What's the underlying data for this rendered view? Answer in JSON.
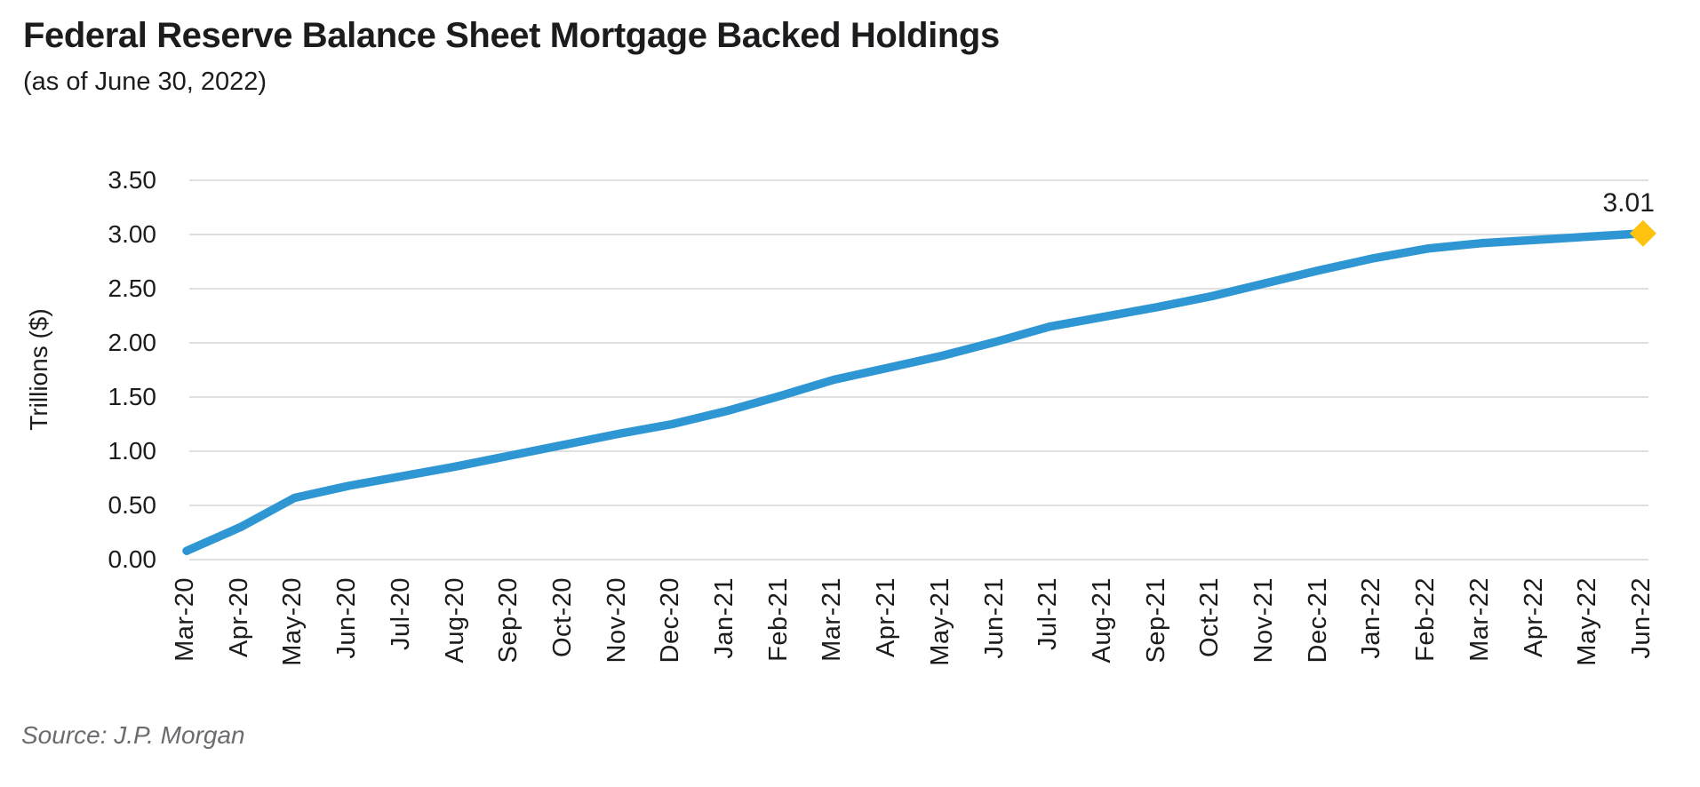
{
  "footer": {
    "source": "Source: J.P. Morgan"
  },
  "chart_data": {
    "type": "line",
    "title": "Federal Reserve Balance Sheet Mortgage Backed Holdings",
    "subtitle": "(as of June 30, 2022)",
    "xlabel": "",
    "ylabel": "Trillions ($)",
    "ylim": [
      0,
      3.5
    ],
    "y_ticks": [
      3.5,
      3.0,
      2.5,
      2.0,
      1.5,
      1.0,
      0.5,
      0.0
    ],
    "grid": "horizontal",
    "legend": "none",
    "categories": [
      "Mar-20",
      "Apr-20",
      "May-20",
      "Jun-20",
      "Jul-20",
      "Aug-20",
      "Sep-20",
      "Oct-20",
      "Nov-20",
      "Dec-20",
      "Jan-21",
      "Feb-21",
      "Mar-21",
      "Apr-21",
      "May-21",
      "Jun-21",
      "Jul-21",
      "Aug-21",
      "Sep-21",
      "Oct-21",
      "Nov-21",
      "Dec-21",
      "Jan-22",
      "Feb-22",
      "Mar-22",
      "Apr-22",
      "May-22",
      "Jun-22"
    ],
    "values": [
      0.08,
      0.3,
      0.57,
      0.68,
      0.77,
      0.86,
      0.96,
      1.06,
      1.16,
      1.25,
      1.37,
      1.51,
      1.66,
      1.77,
      1.88,
      2.01,
      2.15,
      2.24,
      2.33,
      2.43,
      2.55,
      2.67,
      2.78,
      2.87,
      2.92,
      2.95,
      2.98,
      3.01
    ],
    "end_label": "3.01",
    "colors": {
      "line": "#2E97D3",
      "marker": "#FFC20E",
      "grid": "#E0E0E0",
      "text": "#1C1C1E",
      "source_text": "#6B6B70"
    }
  }
}
